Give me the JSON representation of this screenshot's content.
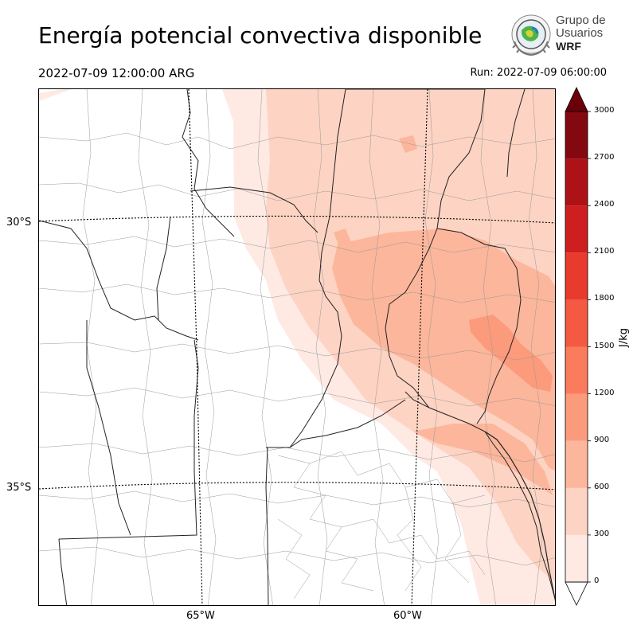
{
  "header": {
    "title": "Energía potencial convectiva disponible",
    "valid_time": "2022-07-09 12:00:00 ARG",
    "run_time": "Run: 2022-07-09 06:00:00"
  },
  "logo": {
    "line1": "Grupo de",
    "line2": "Usuarios",
    "line3": "WRF"
  },
  "map": {
    "lat_labels": [
      "30°S",
      "35°S"
    ],
    "lon_labels": [
      "65°W",
      "60°W"
    ],
    "field": "CAPE"
  },
  "colorbar": {
    "unit": "J/kg",
    "ticks": [
      "0",
      "300",
      "600",
      "900",
      "1200",
      "1500",
      "1800",
      "2100",
      "2400",
      "2700",
      "3000"
    ],
    "colors": [
      "#fee9e3",
      "#fdd3c3",
      "#fcb69b",
      "#fc9a7c",
      "#fb7c5c",
      "#f45a42",
      "#e83a2d",
      "#cf1e20",
      "#ad1217",
      "#830810"
    ],
    "over_color": "#6b0009",
    "extend": "both"
  }
}
